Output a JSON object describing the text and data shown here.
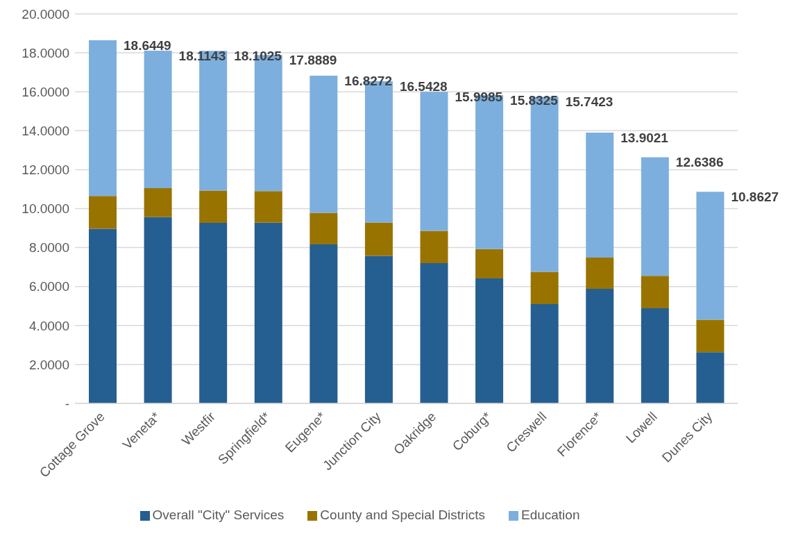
{
  "chart_data": {
    "type": "bar",
    "stacked": true,
    "categories": [
      "Cottage Grove",
      "Veneta*",
      "Westfir",
      "Springfield*",
      "Eugene*",
      "Junction City",
      "Oakridge",
      "Coburg*",
      "Creswell",
      "Florence*",
      "Lowell",
      "Dunes City"
    ],
    "series": [
      {
        "name": "Overall \"City\" Services",
        "color": "#255e91",
        "values": [
          8.97,
          9.56,
          9.27,
          9.28,
          8.16,
          7.58,
          7.2,
          6.42,
          5.1,
          5.88,
          4.88,
          2.63
        ]
      },
      {
        "name": "County and Special Districts",
        "color": "#997300",
        "values": [
          1.68,
          1.49,
          1.66,
          1.62,
          1.63,
          1.71,
          1.66,
          1.5,
          1.66,
          1.61,
          1.67,
          1.67
        ]
      },
      {
        "name": "Education",
        "color": "#7cafde",
        "values": [
          7.9949,
          7.0643,
          7.1725,
          6.9889,
          7.0372,
          7.2528,
          7.1385,
          7.9125,
          8.9823,
          6.4121,
          6.0886,
          6.5627
        ]
      }
    ],
    "totals": [
      "18.6449",
      "18.1143",
      "18.1025",
      "17.8889",
      "16.8272",
      "16.5428",
      "15.9985",
      "15.8325",
      "15.7423",
      "13.9021",
      "12.6386",
      "10.8627"
    ],
    "ylim": [
      0,
      20
    ],
    "yticks": [
      {
        "value": 0,
        "label": "-"
      },
      {
        "value": 2,
        "label": "2.0000"
      },
      {
        "value": 4,
        "label": "4.0000"
      },
      {
        "value": 6,
        "label": "6.0000"
      },
      {
        "value": 8,
        "label": "8.0000"
      },
      {
        "value": 10,
        "label": "10.0000"
      },
      {
        "value": 12,
        "label": "12.0000"
      },
      {
        "value": 14,
        "label": "14.0000"
      },
      {
        "value": 16,
        "label": "16.0000"
      },
      {
        "value": 18,
        "label": "18.0000"
      },
      {
        "value": 20,
        "label": "20.0000"
      }
    ],
    "grid": "y",
    "legend": "bottom"
  }
}
